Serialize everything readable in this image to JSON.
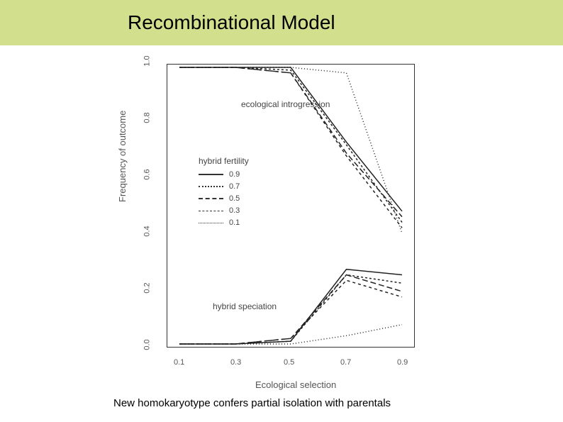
{
  "title": "Recombinational Model",
  "footer": "New homokaryotype confers partial isolation with parentals",
  "chart": {
    "type": "line",
    "xlabel": "Ecological selection",
    "ylabel": "Frequency of outcome",
    "xlim": [
      0.1,
      0.9
    ],
    "ylim": [
      0.0,
      1.0
    ],
    "xticks": [
      0.1,
      0.3,
      0.5,
      0.7,
      0.9
    ],
    "yticks": [
      0.0,
      0.2,
      0.4,
      0.6,
      0.8,
      1.0
    ],
    "ytick_labels": [
      "0.0",
      "0.2",
      "0.4",
      "0.6",
      "0.8",
      "1.0"
    ],
    "xtick_labels": [
      "0.1",
      "0.3",
      "0.5",
      "0.7",
      "0.9"
    ],
    "background_color": "#ffffff",
    "frame_color": "#333333",
    "annotation_upper": "ecological introgression",
    "annotation_lower": "hybrid speciation",
    "legend_title": "hybrid fertility",
    "series_upper": [
      {
        "name": "0.9",
        "dash": "solid",
        "values": [
          1.0,
          1.0,
          1.0,
          0.73,
          0.48
        ]
      },
      {
        "name": "0.7",
        "dash": "3,3",
        "values": [
          1.0,
          1.0,
          0.99,
          0.72,
          0.44
        ]
      },
      {
        "name": "0.5",
        "dash": "8,4",
        "values": [
          1.0,
          1.0,
          0.98,
          0.69,
          0.46
        ]
      },
      {
        "name": "0.3",
        "dash": "4,4",
        "values": [
          1.0,
          1.0,
          0.98,
          0.68,
          0.42
        ]
      },
      {
        "name": "0.1",
        "dash": "1,3",
        "values": [
          1.0,
          1.0,
          1.0,
          0.98,
          0.4
        ]
      }
    ],
    "series_lower": [
      {
        "name": "0.9",
        "dash": "solid",
        "values": [
          0.0,
          0.0,
          0.01,
          0.27,
          0.25
        ]
      },
      {
        "name": "0.7",
        "dash": "3,3",
        "values": [
          0.0,
          0.0,
          0.01,
          0.25,
          0.22
        ]
      },
      {
        "name": "0.5",
        "dash": "8,4",
        "values": [
          0.0,
          0.0,
          0.02,
          0.25,
          0.19
        ]
      },
      {
        "name": "0.3",
        "dash": "4,4",
        "values": [
          0.0,
          0.0,
          0.02,
          0.23,
          0.17
        ]
      },
      {
        "name": "0.1",
        "dash": "1,3",
        "values": [
          0.0,
          0.0,
          0.0,
          0.03,
          0.07
        ]
      }
    ],
    "line_color": "#222222",
    "line_width": 1.5,
    "legend_items": [
      {
        "label": "0.9",
        "dash": "solid"
      },
      {
        "label": "0.7",
        "dash": "3,3"
      },
      {
        "label": "0.5",
        "dash": "8,4"
      },
      {
        "label": "0.3",
        "dash": "4,4"
      },
      {
        "label": "0.1",
        "dash": "1,3"
      }
    ]
  },
  "title_bar_color": "#d2df8c",
  "title_fontsize": 28,
  "footer_fontsize": 15
}
